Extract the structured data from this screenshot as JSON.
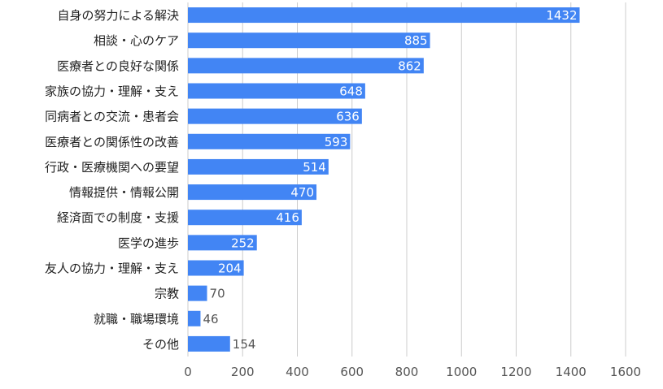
{
  "chart_data": {
    "type": "bar",
    "orientation": "horizontal",
    "title": "",
    "xlabel": "",
    "ylabel": "",
    "categories": [
      "自身の努力による解決",
      "相談・心のケア",
      "医療者との良好な関係",
      "家族の協力・理解・支え",
      "同病者との交流・患者会",
      "医療者との関係性の改善",
      "行政・医療機関への要望",
      "情報提供・情報公開",
      "経済面での制度・支援",
      "医学の進歩",
      "友人の協力・理解・支え",
      "宗教",
      "就職・職場環境",
      "その他"
    ],
    "values": [
      1432,
      885,
      862,
      648,
      636,
      593,
      514,
      470,
      416,
      252,
      204,
      70,
      46,
      154
    ],
    "xlim": [
      0,
      1600
    ],
    "xticks": [
      "0",
      "200",
      "400",
      "600",
      "800",
      "1000",
      "1200",
      "1400",
      "1600"
    ],
    "grid": "vertical",
    "legend": "none",
    "colors": {
      "bar": "#4285f4",
      "grid": "#cccccc"
    }
  }
}
